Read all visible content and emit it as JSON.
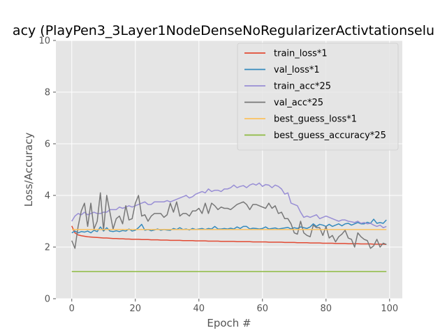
{
  "chart_data": {
    "type": "line",
    "title": "acy (PlayPen3_3Layer1NodeDenseNoRegularizerActivtationselu",
    "xlabel": "Epoch #",
    "ylabel": "Loss/Accuracy",
    "xlim": [
      -5,
      104
    ],
    "ylim": [
      0,
      10
    ],
    "xticks": [
      0,
      20,
      40,
      60,
      80,
      100
    ],
    "yticks": [
      0,
      2,
      4,
      6,
      8,
      10
    ],
    "grid": true,
    "legend_position": "upper-right",
    "colors": {
      "background": "#e5e5e5",
      "grid": "#ffffff",
      "text": "#555555"
    },
    "series": [
      {
        "name": "train_loss*1",
        "color": "#e24a33",
        "values": [
          2.82,
          2.55,
          2.47,
          2.44,
          2.42,
          2.4,
          2.39,
          2.38,
          2.37,
          2.36,
          2.35,
          2.35,
          2.34,
          2.33,
          2.33,
          2.32,
          2.32,
          2.31,
          2.31,
          2.3,
          2.3,
          2.3,
          2.29,
          2.29,
          2.29,
          2.28,
          2.28,
          2.28,
          2.27,
          2.27,
          2.27,
          2.26,
          2.26,
          2.26,
          2.26,
          2.25,
          2.25,
          2.25,
          2.25,
          2.24,
          2.24,
          2.24,
          2.24,
          2.23,
          2.23,
          2.23,
          2.23,
          2.22,
          2.22,
          2.22,
          2.22,
          2.22,
          2.21,
          2.21,
          2.21,
          2.21,
          2.21,
          2.2,
          2.2,
          2.2,
          2.2,
          2.2,
          2.19,
          2.19,
          2.19,
          2.19,
          2.19,
          2.18,
          2.18,
          2.18,
          2.18,
          2.17,
          2.17,
          2.17,
          2.17,
          2.16,
          2.16,
          2.16,
          2.16,
          2.15,
          2.15,
          2.15,
          2.15,
          2.14,
          2.14,
          2.14,
          2.14,
          2.13,
          2.13,
          2.13,
          2.13,
          2.12,
          2.12,
          2.12,
          2.12,
          2.11,
          2.11,
          2.11,
          2.11,
          2.1
        ]
      },
      {
        "name": "val_loss*1",
        "color": "#348abd",
        "values": [
          2.55,
          2.62,
          2.55,
          2.6,
          2.58,
          2.62,
          2.55,
          2.65,
          2.6,
          2.78,
          2.62,
          2.75,
          2.62,
          2.6,
          2.63,
          2.6,
          2.64,
          2.62,
          2.7,
          2.62,
          2.65,
          2.75,
          2.88,
          2.65,
          2.68,
          2.63,
          2.66,
          2.7,
          2.65,
          2.68,
          2.66,
          2.65,
          2.72,
          2.68,
          2.75,
          2.68,
          2.7,
          2.66,
          2.72,
          2.68,
          2.7,
          2.72,
          2.68,
          2.72,
          2.7,
          2.8,
          2.7,
          2.7,
          2.72,
          2.7,
          2.73,
          2.7,
          2.78,
          2.72,
          2.8,
          2.8,
          2.7,
          2.73,
          2.72,
          2.7,
          2.72,
          2.78,
          2.7,
          2.72,
          2.74,
          2.7,
          2.72,
          2.74,
          2.76,
          2.7,
          2.75,
          2.72,
          2.78,
          2.75,
          2.72,
          2.78,
          2.9,
          2.8,
          2.88,
          2.85,
          2.8,
          2.88,
          2.8,
          2.85,
          2.9,
          2.82,
          2.9,
          2.92,
          2.85,
          2.9,
          2.95,
          2.9,
          2.9,
          2.96,
          2.92,
          3.08,
          2.92,
          2.95,
          2.92,
          3.05
        ]
      },
      {
        "name": "train_acc*25",
        "color": "#988ed5",
        "values": [
          3.0,
          3.2,
          3.3,
          3.25,
          3.35,
          3.25,
          3.3,
          3.35,
          3.3,
          3.3,
          3.35,
          3.35,
          3.45,
          3.45,
          3.45,
          3.55,
          3.5,
          3.55,
          3.6,
          3.55,
          3.6,
          3.65,
          3.7,
          3.75,
          3.65,
          3.65,
          3.75,
          3.75,
          3.75,
          3.75,
          3.8,
          3.75,
          3.8,
          3.85,
          3.9,
          3.95,
          4.0,
          3.9,
          3.95,
          4.05,
          4.1,
          4.15,
          4.1,
          4.25,
          4.15,
          4.2,
          4.2,
          4.15,
          4.25,
          4.25,
          4.3,
          4.4,
          4.3,
          4.35,
          4.38,
          4.3,
          4.4,
          4.45,
          4.4,
          4.48,
          4.35,
          4.42,
          4.4,
          4.3,
          4.4,
          4.35,
          4.25,
          4.05,
          4.1,
          3.7,
          3.65,
          3.6,
          3.35,
          3.15,
          3.2,
          3.15,
          3.2,
          3.25,
          3.1,
          3.15,
          3.2,
          3.15,
          3.1,
          3.05,
          3.0,
          3.05,
          3.05,
          3.0,
          2.98,
          2.95,
          3.0,
          2.92,
          2.95,
          2.9,
          2.92,
          2.85,
          2.8,
          2.85,
          2.75,
          2.8
        ]
      },
      {
        "name": "val_acc*25",
        "color": "#777777",
        "values": [
          2.25,
          1.95,
          2.8,
          3.4,
          3.7,
          2.8,
          3.7,
          2.7,
          3.0,
          4.1,
          2.65,
          4.0,
          3.35,
          2.7,
          3.1,
          3.2,
          2.9,
          3.6,
          3.05,
          3.1,
          3.7,
          4.0,
          3.2,
          3.25,
          3.0,
          3.2,
          3.3,
          3.3,
          3.3,
          3.15,
          3.25,
          3.7,
          3.35,
          3.75,
          3.2,
          3.3,
          3.3,
          3.2,
          3.4,
          3.4,
          3.5,
          3.3,
          3.7,
          3.3,
          3.7,
          3.6,
          3.45,
          3.55,
          3.5,
          3.5,
          3.45,
          3.55,
          3.65,
          3.7,
          3.75,
          3.65,
          3.45,
          3.65,
          3.65,
          3.6,
          3.55,
          3.5,
          3.7,
          3.5,
          3.6,
          3.3,
          3.35,
          3.1,
          3.1,
          2.9,
          2.55,
          2.5,
          3.0,
          2.55,
          2.45,
          2.4,
          2.85,
          2.75,
          2.75,
          2.45,
          2.8,
          2.35,
          2.45,
          2.2,
          2.4,
          2.5,
          2.65,
          2.35,
          2.3,
          2.0,
          2.55,
          2.4,
          2.3,
          2.25,
          1.95,
          2.05,
          2.3,
          2.0,
          2.15,
          2.1
        ]
      },
      {
        "name": "best_guess_loss*1",
        "color": "#fbc15e",
        "values": [
          2.68,
          2.68,
          2.68,
          2.68,
          2.68,
          2.68,
          2.68,
          2.68,
          2.68,
          2.68,
          2.68,
          2.68,
          2.68,
          2.68,
          2.68,
          2.68,
          2.68,
          2.68,
          2.68,
          2.68,
          2.68,
          2.68,
          2.68,
          2.68,
          2.68,
          2.68,
          2.68,
          2.68,
          2.68,
          2.68,
          2.68,
          2.68,
          2.68,
          2.68,
          2.68,
          2.68,
          2.68,
          2.68,
          2.68,
          2.68,
          2.68,
          2.68,
          2.68,
          2.68,
          2.68,
          2.68,
          2.68,
          2.68,
          2.68,
          2.68,
          2.68,
          2.68,
          2.68,
          2.68,
          2.68,
          2.68,
          2.68,
          2.68,
          2.68,
          2.68,
          2.68,
          2.68,
          2.68,
          2.68,
          2.68,
          2.68,
          2.68,
          2.68,
          2.68,
          2.68,
          2.68,
          2.68,
          2.68,
          2.68,
          2.68,
          2.68,
          2.68,
          2.68,
          2.68,
          2.68,
          2.68,
          2.68,
          2.68,
          2.68,
          2.68,
          2.68,
          2.68,
          2.68,
          2.68,
          2.68,
          2.68,
          2.68,
          2.68,
          2.68,
          2.68,
          2.68,
          2.68,
          2.68,
          2.68,
          2.68
        ]
      },
      {
        "name": "best_guess_accuracy*25",
        "color": "#8eba42",
        "values": [
          1.05,
          1.05,
          1.05,
          1.05,
          1.05,
          1.05,
          1.05,
          1.05,
          1.05,
          1.05,
          1.05,
          1.05,
          1.05,
          1.05,
          1.05,
          1.05,
          1.05,
          1.05,
          1.05,
          1.05,
          1.05,
          1.05,
          1.05,
          1.05,
          1.05,
          1.05,
          1.05,
          1.05,
          1.05,
          1.05,
          1.05,
          1.05,
          1.05,
          1.05,
          1.05,
          1.05,
          1.05,
          1.05,
          1.05,
          1.05,
          1.05,
          1.05,
          1.05,
          1.05,
          1.05,
          1.05,
          1.05,
          1.05,
          1.05,
          1.05,
          1.05,
          1.05,
          1.05,
          1.05,
          1.05,
          1.05,
          1.05,
          1.05,
          1.05,
          1.05,
          1.05,
          1.05,
          1.05,
          1.05,
          1.05,
          1.05,
          1.05,
          1.05,
          1.05,
          1.05,
          1.05,
          1.05,
          1.05,
          1.05,
          1.05,
          1.05,
          1.05,
          1.05,
          1.05,
          1.05,
          1.05,
          1.05,
          1.05,
          1.05,
          1.05,
          1.05,
          1.05,
          1.05,
          1.05,
          1.05,
          1.05,
          1.05,
          1.05,
          1.05,
          1.05,
          1.05,
          1.05,
          1.05,
          1.05,
          1.05
        ]
      }
    ]
  }
}
